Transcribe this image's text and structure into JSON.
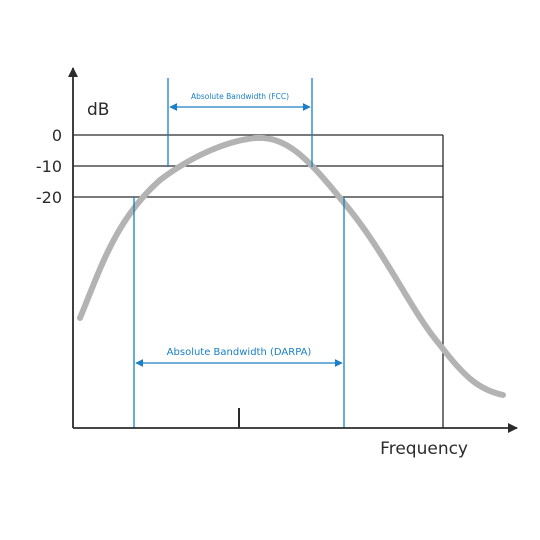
{
  "axes": {
    "y_label": "dB",
    "x_label": "Frequency",
    "y_ticks": [
      "0",
      "-10",
      "-20"
    ]
  },
  "bandwidths": {
    "fcc": {
      "label": "Absolute Bandwidth (FCC)",
      "level_db": -10
    },
    "darpa": {
      "label": "Absolute Bandwidth (DARPA)",
      "level_db": -20
    }
  },
  "colors": {
    "axis": "#2b2b2b",
    "curve": "#b3b3b3",
    "marker": "#1a7fc4",
    "text": "#2b2b2b"
  }
}
